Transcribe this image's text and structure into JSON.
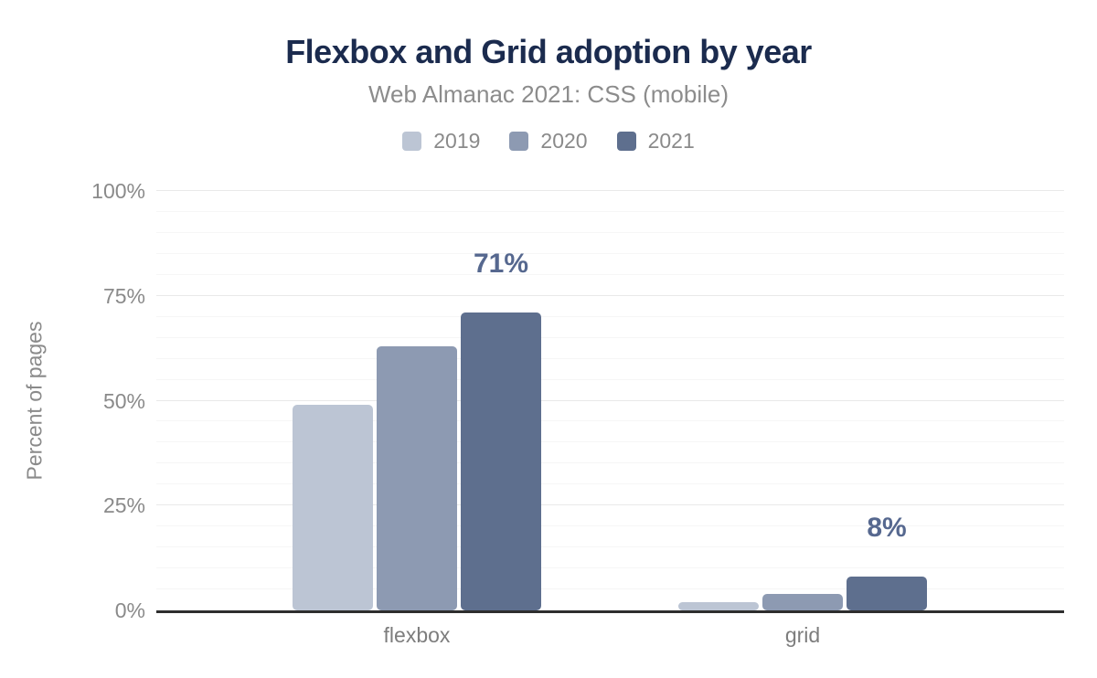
{
  "chart_data": {
    "type": "bar",
    "title": "Flexbox and Grid adoption by year",
    "subtitle": "Web Almanac 2021: CSS (mobile)",
    "ylabel": "Percent of pages",
    "categories": [
      "flexbox",
      "grid"
    ],
    "series": [
      {
        "name": "2019",
        "color": "#bcc5d4",
        "values": [
          49,
          2
        ]
      },
      {
        "name": "2020",
        "color": "#8d9ab2",
        "values": [
          63,
          4
        ]
      },
      {
        "name": "2021",
        "color": "#5e6f8e",
        "values": [
          71,
          8
        ],
        "data_labels": [
          "71%",
          "8%"
        ]
      }
    ],
    "ylim": [
      0,
      100
    ],
    "yticks": [
      {
        "value": 0,
        "label": "0%"
      },
      {
        "value": 25,
        "label": "25%"
      },
      {
        "value": 50,
        "label": "50%"
      },
      {
        "value": 75,
        "label": "75%"
      },
      {
        "value": 100,
        "label": "100%"
      }
    ],
    "minor_tick_step": 5,
    "major_tick_step": 25,
    "grid": true,
    "legend_position": "top"
  },
  "style": {
    "title_color": "#1b2b4e",
    "subtitle_color": "#8c8c8c",
    "tick_label_color": "#8a8a8a",
    "category_label_color": "#7d7d7d",
    "data_label_color": "#56688f",
    "axis_line_color": "#2e2e2e",
    "major_grid_color": "#e9e9e9",
    "minor_grid_color": "#f6f6f6",
    "background": "#ffffff"
  }
}
